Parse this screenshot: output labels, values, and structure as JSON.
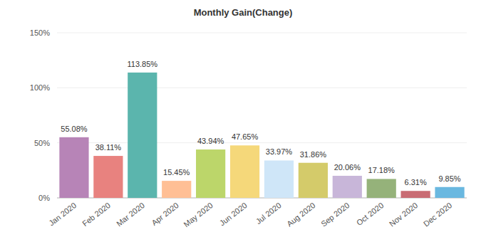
{
  "chart_data": {
    "type": "bar",
    "title": "Monthly Gain(Change)",
    "categories": [
      "Jan 2020",
      "Feb 2020",
      "Mar 2020",
      "Apr 2020",
      "May 2020",
      "Jun 2020",
      "Jul 2020",
      "Aug 2020",
      "Sep 2020",
      "Oct 2020",
      "Nov 2020",
      "Dec 2020"
    ],
    "values": [
      55.08,
      38.11,
      113.85,
      15.45,
      43.94,
      47.65,
      33.97,
      31.86,
      20.06,
      17.18,
      6.31,
      9.85
    ],
    "value_labels": [
      "55.08%",
      "38.11%",
      "113.85%",
      "15.45%",
      "43.94%",
      "47.65%",
      "33.97%",
      "31.86%",
      "20.06%",
      "17.18%",
      "6.31%",
      "9.85%"
    ],
    "colors": [
      "#b784b7",
      "#e8827f",
      "#5bb5ad",
      "#ffbf95",
      "#bcd66a",
      "#f5d87a",
      "#cfe6f8",
      "#d4cb6a",
      "#c8b6d9",
      "#95b27a",
      "#c96c74",
      "#6ab8e0"
    ],
    "ylim": [
      0,
      150
    ],
    "yticks": [
      {
        "value": 0,
        "label": "0%"
      },
      {
        "value": 50,
        "label": "50%"
      },
      {
        "value": 100,
        "label": "100%"
      },
      {
        "value": 150,
        "label": "150%"
      }
    ],
    "grid": true,
    "data_labels": true
  }
}
